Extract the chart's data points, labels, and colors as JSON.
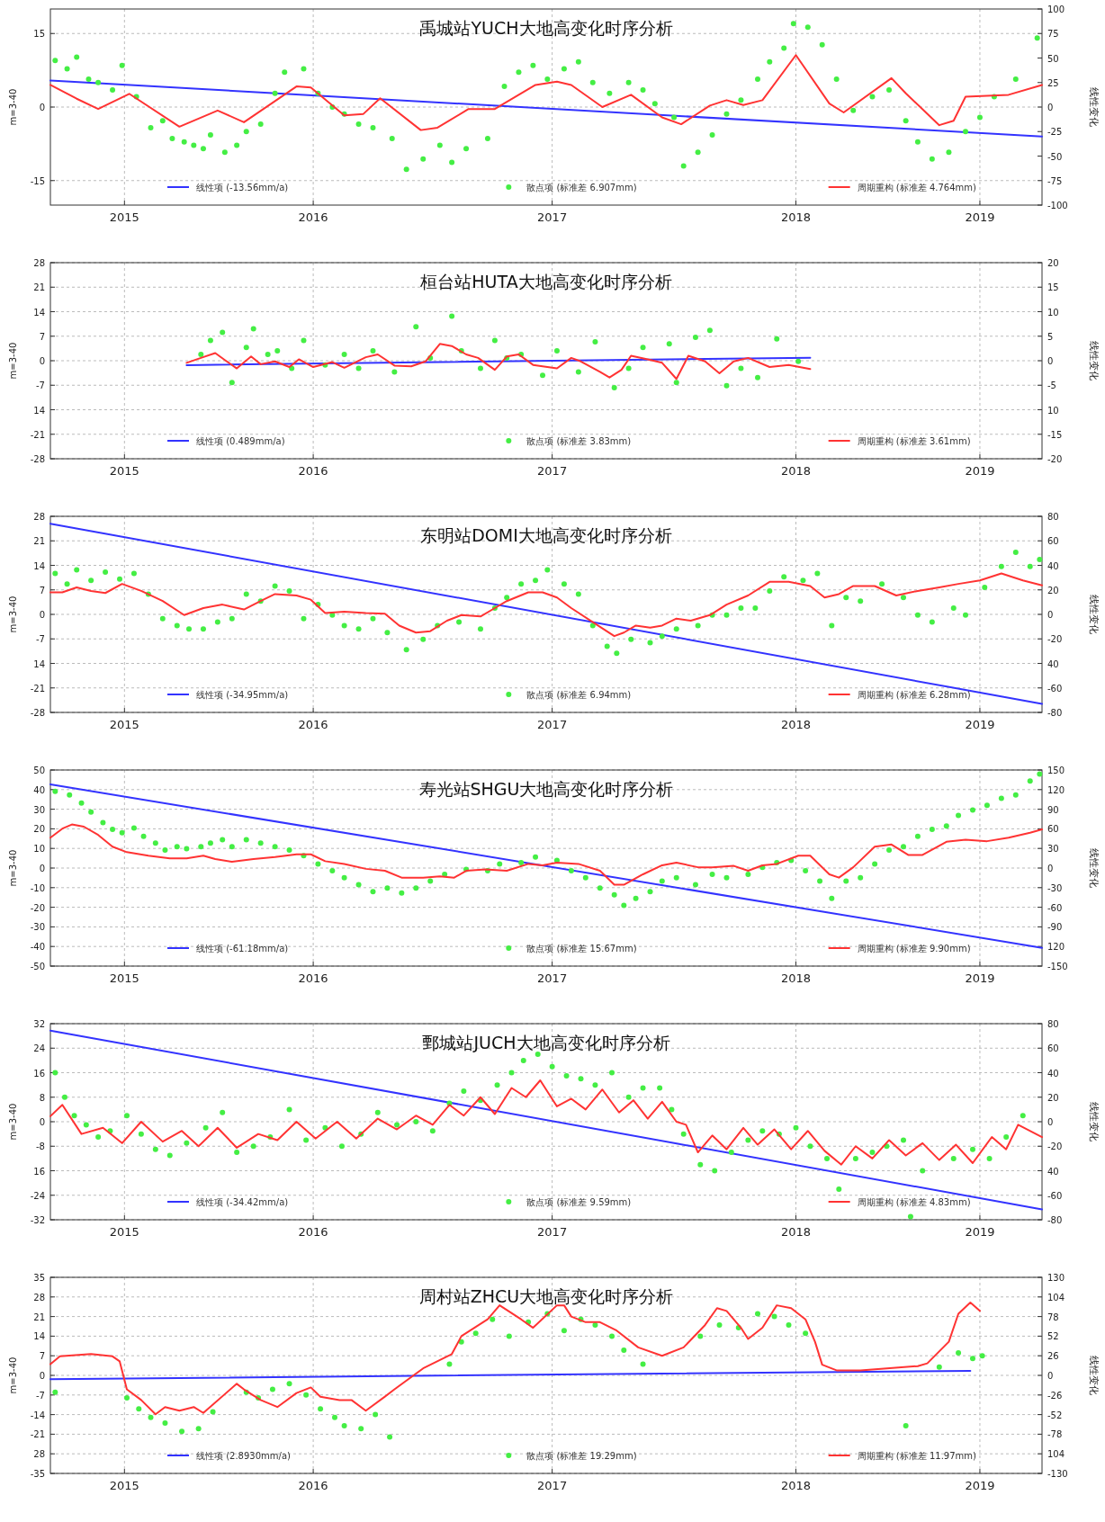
{
  "chart_data": [
    {
      "type": "line",
      "title": "禹城站YUCH大地高变化时序分析",
      "ylabel": "m=3-40",
      "y2label": "线性变化",
      "xlim": [
        2014.9,
        2019.05
      ],
      "xticks": [
        {
          "value": 2015.21,
          "label": "2015"
        },
        {
          "value": 2016.0,
          "label": "2016"
        },
        {
          "value": 2017.0,
          "label": "2017"
        },
        {
          "value": 2018.02,
          "label": "2018"
        },
        {
          "value": 2018.79,
          "label": "2019"
        }
      ],
      "ylim": [
        -20,
        20
      ],
      "yticks": [
        -15,
        0,
        15
      ],
      "y2lim": [
        -100,
        100
      ],
      "y2ticks": [
        -100,
        -75,
        -50,
        -25,
        0,
        25,
        50,
        75,
        100
      ],
      "grid": true,
      "legend": "bottom",
      "series": [
        {
          "name": "线性项 (-13.56mm/a)",
          "type": "line",
          "axis": "y2",
          "color": "#3333ff",
          "x": [
            2014.9,
            2019.05
          ],
          "values": [
            27,
            -30
          ]
        },
        {
          "name": "散点项 (标准差 6.907mm)",
          "type": "scatter",
          "marker": "circle",
          "color": "#44ee44",
          "x": [
            2014.92,
            2014.97,
            2015.01,
            2015.06,
            2015.1,
            2015.16,
            2015.2,
            2015.26,
            2015.32,
            2015.37,
            2015.41,
            2015.46,
            2015.5,
            2015.54,
            2015.57,
            2015.63,
            2015.68,
            2015.72,
            2015.78,
            2015.84,
            2015.88,
            2015.96,
            2016.02,
            2016.08,
            2016.13,
            2016.19,
            2016.25,
            2016.33,
            2016.39,
            2016.46,
            2016.53,
            2016.58,
            2016.64,
            2016.73,
            2016.8,
            2016.86,
            2016.92,
            2016.98,
            2017.05,
            2017.11,
            2017.17,
            2017.24,
            2017.32,
            2017.38,
            2017.43,
            2017.51,
            2017.55,
            2017.61,
            2017.67,
            2017.73,
            2017.79,
            2017.86,
            2017.91,
            2017.97,
            2018.01,
            2018.07,
            2018.13,
            2018.19,
            2018.26,
            2018.34,
            2018.41,
            2018.48,
            2018.53,
            2018.59,
            2018.66,
            2018.73,
            2018.79,
            2018.85,
            2018.94,
            2019.03
          ],
          "values": [
            9.5,
            7.8,
            10.2,
            5.7,
            5.0,
            3.5,
            8.5,
            2.1,
            -4.2,
            -2.8,
            -6.4,
            -7.1,
            -7.8,
            -8.5,
            -5.7,
            -9.2,
            -7.8,
            -5.0,
            -3.5,
            2.8,
            7.1,
            7.8,
            2.8,
            0,
            -1.4,
            -3.5,
            -4.2,
            -6.4,
            -12.7,
            -10.6,
            -7.8,
            -11.3,
            -8.5,
            -6.4,
            4.2,
            7.1,
            8.5,
            5.7,
            7.8,
            9.2,
            5.0,
            2.8,
            5.0,
            3.5,
            0.7,
            -2.1,
            -12.0,
            -9.2,
            -5.7,
            -1.4,
            1.4,
            5.7,
            9.2,
            12.0,
            17.0,
            16.3,
            12.7,
            5.7,
            -0.7,
            2.1,
            3.5,
            -2.8,
            -7.1,
            -10.6,
            -9.2,
            -5.0,
            -2.1,
            2.1,
            5.7,
            14.1
          ]
        },
        {
          "name": "周期重构 (标准差 4.764mm)",
          "type": "line",
          "color": "#ff3333",
          "x": [
            2014.9,
            2015.01,
            2015.1,
            2015.23,
            2015.44,
            2015.6,
            2015.71,
            2015.93,
            2015.99,
            2016.13,
            2016.21,
            2016.28,
            2016.45,
            2016.52,
            2016.65,
            2016.76,
            2016.93,
            2017.02,
            2017.08,
            2017.21,
            2017.33,
            2017.46,
            2017.54,
            2017.66,
            2017.73,
            2017.8,
            2017.88,
            2018.02,
            2018.16,
            2018.22,
            2018.42,
            2018.48,
            2018.62,
            2018.68,
            2018.73,
            2018.91,
            2019.05
          ],
          "values": [
            4.5,
            1.7,
            -0.4,
            2.7,
            -4.0,
            -0.7,
            -3.1,
            4.2,
            4.0,
            -1.7,
            -1.4,
            1.8,
            -4.7,
            -4.2,
            -0.4,
            -0.4,
            4.5,
            5.2,
            4.5,
            0,
            2.5,
            -2.1,
            -3.5,
            0.3,
            1.4,
            0.4,
            1.4,
            10.6,
            0.7,
            -1.1,
            5.9,
            2.8,
            -3.7,
            -2.8,
            2.1,
            2.5,
            4.5
          ]
        }
      ]
    },
    {
      "type": "line",
      "title": "桓台站HUTA大地高变化时序分析",
      "ylabel": "m=3-40",
      "y2label": "线性变化",
      "xlim": [
        2014.9,
        2019.05
      ],
      "xticks": [
        {
          "value": 2015.21,
          "label": "2015"
        },
        {
          "value": 2016.0,
          "label": "2016"
        },
        {
          "value": 2017.0,
          "label": "2017"
        },
        {
          "value": 2018.02,
          "label": "2018"
        },
        {
          "value": 2018.79,
          "label": "2019"
        }
      ],
      "ylim": [
        -28,
        28
      ],
      "yticks": [
        -28,
        -21,
        {
          "value": -14,
          "label": "14"
        },
        -7,
        0,
        7,
        14,
        21,
        28
      ],
      "y2lim": [
        -20,
        20
      ],
      "y2ticks": [
        -20,
        -15,
        {
          "value": -10,
          "label": "10"
        },
        -5,
        0,
        5,
        10,
        15,
        20
      ],
      "grid": true,
      "legend": "bottom",
      "series": [
        {
          "name": "线性项 (0.489mm/a)",
          "type": "line",
          "axis": "y2",
          "color": "#3333ff",
          "x": [
            2015.47,
            2018.08
          ],
          "values": [
            -0.9,
            0.6
          ]
        },
        {
          "name": "散点项 (标准差 3.83mm)",
          "type": "scatter",
          "marker": "circle",
          "color": "#44ee44",
          "x": [
            2015.53,
            2015.57,
            2015.62,
            2015.66,
            2015.72,
            2015.75,
            2015.81,
            2015.85,
            2015.91,
            2015.96,
            2016.05,
            2016.13,
            2016.19,
            2016.25,
            2016.34,
            2016.43,
            2016.49,
            2016.58,
            2016.62,
            2016.7,
            2016.76,
            2016.81,
            2016.87,
            2016.96,
            2017.02,
            2017.11,
            2017.18,
            2017.26,
            2017.32,
            2017.38,
            2017.49,
            2017.52,
            2017.6,
            2017.66,
            2017.73,
            2017.79,
            2017.86,
            2017.94,
            2018.03
          ],
          "values": [
            1.8,
            5.8,
            8.1,
            -6.2,
            3.8,
            9.1,
            1.8,
            2.8,
            -2.2,
            5.8,
            -1.2,
            1.8,
            -2.2,
            2.8,
            -3.2,
            9.7,
            0.8,
            12.7,
            2.8,
            -2.2,
            5.8,
            0.8,
            1.8,
            -4.2,
            2.8,
            -3.2,
            5.4,
            -7.7,
            -2.2,
            3.8,
            4.8,
            -6.2,
            6.7,
            8.7,
            -7.1,
            -2.2,
            -4.8,
            6.2,
            -0.2
          ]
        },
        {
          "name": "周期重构 (标准差 3.61mm)",
          "type": "line",
          "color": "#ff3333",
          "x": [
            2015.47,
            2015.53,
            2015.59,
            2015.63,
            2015.68,
            2015.74,
            2015.78,
            2015.84,
            2015.9,
            2015.94,
            2016.0,
            2016.08,
            2016.13,
            2016.22,
            2016.27,
            2016.34,
            2016.41,
            2016.47,
            2016.53,
            2016.58,
            2016.64,
            2016.69,
            2016.76,
            2016.81,
            2016.86,
            2016.92,
            2017.02,
            2017.08,
            2017.12,
            2017.2,
            2017.24,
            2017.29,
            2017.33,
            2017.4,
            2017.46,
            2017.52,
            2017.57,
            2017.64,
            2017.7,
            2017.76,
            2017.82,
            2017.91,
            2017.99,
            2018.08
          ],
          "values": [
            -0.6,
            0.8,
            2.2,
            0.2,
            -2.2,
            1.2,
            -1.0,
            -0.2,
            -1.8,
            0.4,
            -1.8,
            -0.4,
            -2.0,
            1.0,
            1.8,
            -1.4,
            -1.6,
            -0.2,
            4.8,
            4.2,
            1.8,
            0.8,
            -2.6,
            1.2,
            1.8,
            -1.2,
            -2.2,
            0.8,
            -0.2,
            -3.2,
            -4.8,
            -2.6,
            1.4,
            0.4,
            -0.6,
            -5.2,
            1.4,
            -0.2,
            -3.6,
            -0.2,
            0.8,
            -1.8,
            -1.2,
            -2.4
          ]
        }
      ]
    },
    {
      "type": "line",
      "title": "东明站DOMI大地高变化时序分析",
      "ylabel": "m=3-40",
      "y2label": "线性变化",
      "xlim": [
        2014.9,
        2019.05
      ],
      "xticks": [
        {
          "value": 2015.21,
          "label": "2015"
        },
        {
          "value": 2016.0,
          "label": "2016"
        },
        {
          "value": 2017.0,
          "label": "2017"
        },
        {
          "value": 2018.02,
          "label": "2018"
        },
        {
          "value": 2018.79,
          "label": "2019"
        }
      ],
      "ylim": [
        -28,
        28
      ],
      "yticks": [
        -28,
        -21,
        {
          "value": -14,
          "label": "14"
        },
        -7,
        0,
        7,
        14,
        21,
        28
      ],
      "y2lim": [
        -80,
        80
      ],
      "y2ticks": [
        -80,
        -60,
        {
          "value": -40,
          "label": "40"
        },
        -20,
        0,
        20,
        40,
        60,
        80
      ],
      "grid": true,
      "legend": "bottom",
      "series": [
        {
          "name": "线性项 (-34.95mm/a)",
          "type": "line",
          "axis": "y2",
          "color": "#3333ff",
          "x": [
            2014.9,
            2019.05
          ],
          "values": [
            74,
            -73
          ]
        },
        {
          "name": "散点项 (标准差 6.94mm)",
          "type": "scatter",
          "marker": "circle",
          "color": "#44ee44",
          "x": [
            2014.92,
            2014.97,
            2015.01,
            2015.07,
            2015.13,
            2015.19,
            2015.25,
            2015.31,
            2015.37,
            2015.43,
            2015.48,
            2015.54,
            2015.6,
            2015.66,
            2015.72,
            2015.78,
            2015.84,
            2015.9,
            2015.96,
            2016.02,
            2016.08,
            2016.13,
            2016.19,
            2016.25,
            2016.31,
            2016.39,
            2016.46,
            2016.52,
            2016.61,
            2016.7,
            2016.76,
            2016.81,
            2016.87,
            2016.93,
            2016.98,
            2017.05,
            2017.11,
            2017.17,
            2017.23,
            2017.27,
            2017.33,
            2017.41,
            2017.46,
            2017.52,
            2017.61,
            2017.67,
            2017.73,
            2017.79,
            2017.85,
            2017.91,
            2017.97,
            2018.05,
            2018.11,
            2018.17,
            2018.23,
            2018.29,
            2018.38,
            2018.47,
            2018.53,
            2018.59,
            2018.68,
            2018.73,
            2018.81,
            2018.88,
            2018.94,
            2019.0,
            2019.04
          ],
          "values": [
            11.7,
            8.7,
            12.7,
            9.7,
            12.1,
            10.1,
            11.7,
            5.8,
            -1.2,
            -3.2,
            -4.2,
            -4.2,
            -2.2,
            -1.2,
            5.8,
            3.8,
            8.1,
            6.7,
            -1.2,
            2.8,
            -0.2,
            -3.2,
            -4.2,
            -1.2,
            -5.2,
            -10.1,
            -7.1,
            -3.2,
            -2.2,
            -4.2,
            1.8,
            4.8,
            8.7,
            9.7,
            12.7,
            8.7,
            5.8,
            -3.2,
            -9.1,
            -11.1,
            -7.1,
            -8.1,
            -6.2,
            -4.2,
            -3.2,
            -0.2,
            -0.2,
            1.8,
            1.8,
            6.7,
            10.7,
            9.7,
            11.7,
            -3.2,
            4.8,
            3.8,
            8.7,
            4.8,
            -0.2,
            -2.2,
            1.8,
            -0.2,
            7.7,
            13.7,
            17.7,
            13.7,
            15.7
          ]
        },
        {
          "name": "周期重构 (标准差 6.28mm)",
          "type": "line",
          "color": "#ff3333",
          "x": [
            2014.9,
            2014.95,
            2015.01,
            2015.07,
            2015.13,
            2015.2,
            2015.28,
            2015.37,
            2015.46,
            2015.54,
            2015.62,
            2015.71,
            2015.78,
            2015.84,
            2015.93,
            2015.99,
            2016.05,
            2016.13,
            2016.22,
            2016.3,
            2016.36,
            2016.43,
            2016.49,
            2016.56,
            2016.62,
            2016.7,
            2016.76,
            2016.81,
            2016.9,
            2016.96,
            2017.02,
            2017.08,
            2017.17,
            2017.26,
            2017.3,
            2017.35,
            2017.41,
            2017.46,
            2017.52,
            2017.58,
            2017.66,
            2017.73,
            2017.82,
            2017.91,
            2017.99,
            2018.08,
            2018.14,
            2018.2,
            2018.26,
            2018.35,
            2018.44,
            2018.53,
            2018.62,
            2018.7,
            2018.79,
            2018.88,
            2018.97,
            2019.05
          ],
          "values": [
            6.3,
            6.3,
            7.7,
            6.7,
            6.1,
            8.7,
            6.7,
            3.8,
            -0.2,
            1.8,
            2.8,
            1.4,
            3.8,
            5.8,
            5.4,
            4.2,
            0.4,
            0.8,
            0.4,
            0.2,
            -3.2,
            -5.2,
            -4.8,
            -1.8,
            -0.2,
            -0.6,
            1.8,
            3.8,
            6.3,
            6.3,
            4.8,
            1.8,
            -2.2,
            -6.2,
            -5.2,
            -3.2,
            -3.8,
            -3.2,
            -1.2,
            -1.8,
            -0.2,
            2.8,
            5.4,
            9.3,
            9.3,
            8.1,
            4.8,
            5.8,
            8.1,
            8.1,
            5.4,
            6.7,
            7.7,
            8.7,
            9.7,
            11.7,
            9.7,
            8.3
          ]
        }
      ]
    },
    {
      "type": "line",
      "title": "寿光站SHGU大地高变化时序分析",
      "ylabel": "m=3-40",
      "y2label": "线性变化",
      "xlim": [
        2014.9,
        2019.05
      ],
      "xticks": [
        {
          "value": 2015.21,
          "label": "2015"
        },
        {
          "value": 2016.0,
          "label": "2016"
        },
        {
          "value": 2017.0,
          "label": "2017"
        },
        {
          "value": 2018.02,
          "label": "2018"
        },
        {
          "value": 2018.79,
          "label": "2019"
        }
      ],
      "ylim": [
        -50,
        50
      ],
      "yticks": [
        -50,
        -40,
        -30,
        -20,
        -10,
        0,
        10,
        20,
        30,
        40,
        50
      ],
      "y2lim": [
        -150,
        150
      ],
      "y2ticks": [
        -150,
        {
          "value": -120,
          "label": "120"
        },
        -90,
        -60,
        -30,
        0,
        30,
        60,
        90,
        120,
        150
      ],
      "grid": true,
      "legend": "bottom",
      "series": [
        {
          "name": "线性项 (-61.18mm/a)",
          "type": "line",
          "axis": "y2",
          "color": "#3333ff",
          "x": [
            2014.9,
            2019.05
          ],
          "values": [
            128,
            -122
          ]
        },
        {
          "name": "散点项 (标准差 15.67mm)",
          "type": "scatter",
          "marker": "circle",
          "color": "#44ee44",
          "x": [
            2014.92,
            2014.98,
            2015.03,
            2015.07,
            2015.12,
            2015.16,
            2015.2,
            2015.25,
            2015.29,
            2015.34,
            2015.38,
            2015.43,
            2015.47,
            2015.53,
            2015.57,
            2015.62,
            2015.66,
            2015.72,
            2015.78,
            2015.84,
            2015.9,
            2015.96,
            2016.02,
            2016.08,
            2016.13,
            2016.19,
            2016.25,
            2016.31,
            2016.37,
            2016.43,
            2016.49,
            2016.55,
            2016.64,
            2016.73,
            2016.78,
            2016.87,
            2016.93,
            2017.02,
            2017.08,
            2017.14,
            2017.2,
            2017.26,
            2017.3,
            2017.35,
            2017.41,
            2017.46,
            2017.52,
            2017.6,
            2017.67,
            2017.73,
            2017.82,
            2017.88,
            2017.94,
            2018.0,
            2018.06,
            2018.12,
            2018.17,
            2018.23,
            2018.29,
            2018.35,
            2018.41,
            2018.47,
            2018.53,
            2018.59,
            2018.65,
            2018.7,
            2018.76,
            2018.82,
            2018.88,
            2018.94,
            2019.0,
            2019.04
          ],
          "values": [
            39.1,
            37.3,
            33.1,
            28.5,
            23.2,
            19.7,
            18.0,
            20.4,
            16.2,
            12.7,
            9.2,
            10.9,
            9.9,
            10.9,
            12.7,
            14.4,
            10.9,
            14.4,
            12.7,
            10.9,
            9.2,
            6.3,
            2.1,
            -1.4,
            -4.9,
            -8.5,
            -12.0,
            -10.2,
            -12.7,
            -10.2,
            -6.7,
            -3.2,
            -0.7,
            -1.4,
            2.1,
            2.8,
            5.6,
            3.9,
            -1.4,
            -4.9,
            -10.2,
            -13.7,
            -19.0,
            -15.5,
            -12.0,
            -6.7,
            -4.9,
            -8.5,
            -3.2,
            -4.9,
            -3.2,
            0.4,
            2.8,
            3.9,
            -1.4,
            -6.7,
            -15.5,
            -6.7,
            -4.9,
            2.1,
            9.2,
            10.9,
            16.2,
            19.7,
            21.5,
            26.8,
            29.6,
            32.0,
            35.6,
            37.3,
            44.4,
            47.9
          ]
        },
        {
          "name": "周期重构 (标准差 9.90mm)",
          "type": "line",
          "color": "#ff3333",
          "x": [
            2014.9,
            2014.95,
            2014.99,
            2015.04,
            2015.1,
            2015.16,
            2015.22,
            2015.31,
            2015.4,
            2015.47,
            2015.54,
            2015.59,
            2015.66,
            2015.75,
            2015.84,
            2015.93,
            2015.99,
            2016.05,
            2016.13,
            2016.22,
            2016.3,
            2016.37,
            2016.46,
            2016.53,
            2016.59,
            2016.64,
            2016.72,
            2016.81,
            2016.9,
            2016.96,
            2017.02,
            2017.11,
            2017.2,
            2017.26,
            2017.3,
            2017.38,
            2017.46,
            2017.52,
            2017.61,
            2017.67,
            2017.76,
            2017.82,
            2017.88,
            2017.94,
            2018.03,
            2018.08,
            2018.16,
            2018.2,
            2018.26,
            2018.35,
            2018.42,
            2018.49,
            2018.55,
            2018.65,
            2018.73,
            2018.82,
            2018.91,
            2019.0,
            2019.05
          ],
          "values": [
            15.5,
            20.1,
            22.2,
            21.1,
            16.9,
            10.9,
            8.1,
            6.3,
            4.9,
            4.9,
            6.3,
            4.6,
            3.2,
            4.6,
            5.6,
            7.0,
            7.0,
            3.5,
            2.1,
            -0.4,
            -1.4,
            -4.9,
            -4.9,
            -4.2,
            -4.9,
            -1.4,
            -0.7,
            -1.4,
            2.1,
            1.4,
            2.8,
            2.1,
            -1.4,
            -8.5,
            -8.5,
            -3.2,
            1.4,
            2.8,
            0.4,
            0.4,
            1.1,
            -1.4,
            1.4,
            2.1,
            6.3,
            6.3,
            -3.2,
            -4.9,
            0.4,
            10.9,
            12.0,
            6.7,
            6.7,
            13.4,
            14.4,
            13.7,
            15.5,
            18.0,
            19.7
          ]
        }
      ]
    },
    {
      "type": "line",
      "title": "鄄城站JUCH大地高变化时序分析",
      "ylabel": "m=3-40",
      "y2label": "线性变化",
      "xlim": [
        2014.9,
        2019.05
      ],
      "xticks": [
        {
          "value": 2015.21,
          "label": "2015"
        },
        {
          "value": 2016.0,
          "label": "2016"
        },
        {
          "value": 2017.0,
          "label": "2017"
        },
        {
          "value": 2018.02,
          "label": "2018"
        },
        {
          "value": 2018.79,
          "label": "2019"
        }
      ],
      "ylim": [
        -32,
        32
      ],
      "yticks": [
        -32,
        -24,
        {
          "value": -16,
          "label": "16"
        },
        -8,
        0,
        8,
        16,
        24,
        32
      ],
      "y2lim": [
        -80,
        80
      ],
      "y2ticks": [
        -80,
        -60,
        {
          "value": -40,
          "label": "40"
        },
        -20,
        0,
        20,
        40,
        60,
        80
      ],
      "grid": true,
      "legend": "bottom",
      "series": [
        {
          "name": "线性项 (-34.42mm/a)",
          "type": "line",
          "axis": "y2",
          "color": "#3333ff",
          "x": [
            2014.9,
            2019.05
          ],
          "values": [
            74.3,
            -71.5
          ]
        },
        {
          "name": "散点项 (标准差 9.59mm)",
          "type": "scatter",
          "marker": "circle",
          "color": "#44ee44",
          "x": [
            2014.92,
            2014.96,
            2015.0,
            2015.05,
            2015.1,
            2015.15,
            2015.22,
            2015.28,
            2015.34,
            2015.4,
            2015.47,
            2015.55,
            2015.62,
            2015.68,
            2015.75,
            2015.82,
            2015.9,
            2015.97,
            2016.05,
            2016.12,
            2016.2,
            2016.27,
            2016.35,
            2016.43,
            2016.5,
            2016.57,
            2016.63,
            2016.7,
            2016.77,
            2016.83,
            2016.88,
            2016.94,
            2017.0,
            2017.06,
            2017.12,
            2017.18,
            2017.25,
            2017.32,
            2017.38,
            2017.45,
            2017.5,
            2017.55,
            2017.62,
            2017.68,
            2017.75,
            2017.82,
            2017.88,
            2017.95,
            2018.02,
            2018.08,
            2018.15,
            2018.2,
            2018.27,
            2018.34,
            2018.4,
            2018.47,
            2018.5,
            2018.55,
            2018.68,
            2018.76,
            2018.83,
            2018.9,
            2018.97
          ],
          "values": [
            16,
            8,
            2,
            -1,
            -5,
            -3,
            2,
            -4,
            -9,
            -11,
            -7,
            -2,
            3,
            -10,
            -8,
            -5,
            4,
            -6,
            -2,
            -8,
            -4,
            3,
            -1,
            0,
            -3,
            6,
            10,
            7,
            12,
            16,
            20,
            22,
            18,
            15,
            14,
            12,
            16,
            8,
            11,
            11,
            4,
            -4,
            -14,
            -16,
            -10,
            -6,
            -3,
            -4,
            -2,
            -8,
            -12,
            -22,
            -12,
            -10,
            -8,
            -6,
            -31,
            -16,
            -12,
            -9,
            -12,
            -5,
            2
          ]
        },
        {
          "name": "周期重构 (标准差 4.83mm)",
          "type": "line",
          "color": "#ff3333",
          "x": [
            2014.9,
            2014.95,
            2015.03,
            2015.12,
            2015.2,
            2015.28,
            2015.37,
            2015.45,
            2015.52,
            2015.6,
            2015.68,
            2015.77,
            2015.85,
            2015.93,
            2016.01,
            2016.1,
            2016.18,
            2016.27,
            2016.35,
            2016.43,
            2016.5,
            2016.57,
            2016.63,
            2016.7,
            2016.76,
            2016.83,
            2016.89,
            2016.95,
            2017.02,
            2017.08,
            2017.14,
            2017.21,
            2017.28,
            2017.34,
            2017.4,
            2017.46,
            2017.52,
            2017.56,
            2017.61,
            2017.67,
            2017.73,
            2017.8,
            2017.86,
            2017.93,
            2018.0,
            2018.07,
            2018.14,
            2018.21,
            2018.27,
            2018.34,
            2018.41,
            2018.48,
            2018.55,
            2018.62,
            2018.69,
            2018.76,
            2018.84,
            2018.9,
            2018.95,
            2019.05
          ],
          "values": [
            1.8,
            5.5,
            -4.0,
            -2.0,
            -7.0,
            0.0,
            -6.5,
            -3.0,
            -8.0,
            -2.0,
            -8.5,
            -4.0,
            -6.0,
            0.0,
            -5.5,
            0.0,
            -5.5,
            1.0,
            -2.5,
            2.0,
            -1.0,
            5.5,
            2.0,
            8.0,
            2.5,
            11.0,
            8.0,
            13.5,
            5.0,
            7.5,
            4.0,
            10.5,
            3.0,
            7.0,
            1.0,
            6.5,
            0.0,
            -1.0,
            -10.0,
            -4.5,
            -9.0,
            -2.0,
            -7.5,
            -2.5,
            -9.0,
            -3.0,
            -9.5,
            -14.0,
            -8.0,
            -12.0,
            -6.0,
            -11.0,
            -7.0,
            -12.5,
            -7.5,
            -13.5,
            -5.0,
            -9.0,
            -1.0,
            -5.0
          ]
        }
      ]
    },
    {
      "type": "line",
      "title": "周村站ZHCU大地高变化时序分析",
      "ylabel": "m=3-40",
      "y2label": "线性变化",
      "xlim": [
        2014.9,
        2019.05
      ],
      "xticks": [
        {
          "value": 2015.21,
          "label": "2015"
        },
        {
          "value": 2016.0,
          "label": "2016"
        },
        {
          "value": 2017.0,
          "label": "2017"
        },
        {
          "value": 2018.02,
          "label": "2018"
        },
        {
          "value": 2018.79,
          "label": "2019"
        }
      ],
      "ylim": [
        -35,
        35
      ],
      "yticks": [
        -35,
        {
          "value": -28,
          "label": "28"
        },
        -21,
        -14,
        -7,
        0,
        7,
        14,
        21,
        28,
        35
      ],
      "y2lim": [
        -130,
        130
      ],
      "y2ticks": [
        -130,
        {
          "value": -104,
          "label": "104"
        },
        -78,
        -52,
        -26,
        0,
        26,
        52,
        78,
        104,
        130
      ],
      "grid": true,
      "legend": "bottom",
      "series": [
        {
          "name": "线性项 (2.8930mm/a)",
          "type": "line",
          "axis": "y2",
          "color": "#3333ff",
          "x": [
            2014.9,
            2018.75
          ],
          "values": [
            -5,
            6
          ]
        },
        {
          "name": "散点项 (标准差 19.29mm)",
          "type": "scatter",
          "marker": "circle",
          "color": "#44ee44",
          "x": [
            2014.92,
            2015.22,
            2015.27,
            2015.32,
            2015.38,
            2015.45,
            2015.52,
            2015.58,
            2015.72,
            2015.77,
            2015.83,
            2015.9,
            2015.97,
            2016.03,
            2016.09,
            2016.13,
            2016.2,
            2016.26,
            2016.32,
            2016.57,
            2016.62,
            2016.68,
            2016.75,
            2016.82,
            2016.9,
            2016.98,
            2017.05,
            2017.12,
            2017.18,
            2017.25,
            2017.3,
            2017.38,
            2017.62,
            2017.7,
            2017.78,
            2017.86,
            2017.93,
            2017.99,
            2018.06,
            2018.48,
            2018.62,
            2018.7,
            2018.76,
            2018.8
          ],
          "values": [
            -6,
            -8,
            -12,
            -15,
            -17,
            -20,
            -19,
            -13,
            -6,
            -8,
            -5,
            -3,
            -7,
            -12,
            -15,
            -18,
            -19,
            -14,
            -22,
            4,
            12,
            15,
            20,
            14,
            19,
            22,
            16,
            20,
            18,
            14,
            9,
            4,
            14,
            18,
            17,
            22,
            21,
            18,
            15,
            -18,
            3,
            8,
            6,
            7
          ]
        },
        {
          "name": "周期重构 (标准差 11.97mm)",
          "type": "line",
          "color": "#ff3333",
          "x": [
            2014.9,
            2014.94,
            2015.07,
            2015.16,
            2015.19,
            2015.22,
            2015.28,
            2015.34,
            2015.38,
            2015.44,
            2015.5,
            2015.54,
            2015.68,
            2015.71,
            2015.78,
            2015.85,
            2015.93,
            2015.99,
            2016.03,
            2016.11,
            2016.16,
            2016.22,
            2016.3,
            2016.34,
            2016.46,
            2016.58,
            2016.62,
            2016.73,
            2016.78,
            2016.87,
            2016.92,
            2017.02,
            2017.05,
            2017.08,
            2017.14,
            2017.2,
            2017.27,
            2017.36,
            2017.46,
            2017.55,
            2017.64,
            2017.69,
            2017.73,
            2017.79,
            2017.82,
            2017.88,
            2017.94,
            2018.0,
            2018.06,
            2018.1,
            2018.13,
            2018.19,
            2018.29,
            2018.53,
            2018.57,
            2018.66,
            2018.7,
            2018.75,
            2018.79
          ],
          "values": [
            4.0,
            6.8,
            7.6,
            6.8,
            5.0,
            -5.0,
            -8.8,
            -13.9,
            -11.3,
            -12.6,
            -11.3,
            -13.4,
            -3.0,
            -5.0,
            -8.8,
            -11.3,
            -6.3,
            -4.3,
            -7.6,
            -8.8,
            -8.8,
            -12.6,
            -7.6,
            -5.0,
            2.5,
            7.6,
            14,
            20,
            25,
            20,
            17,
            25,
            25,
            21,
            19,
            19,
            16,
            10,
            7,
            10,
            18,
            24,
            23,
            17,
            13,
            17,
            25,
            24,
            20,
            12,
            3.8,
            1.8,
            1.8,
            3.3,
            4.3,
            12,
            22,
            26,
            23
          ]
        }
      ]
    }
  ]
}
